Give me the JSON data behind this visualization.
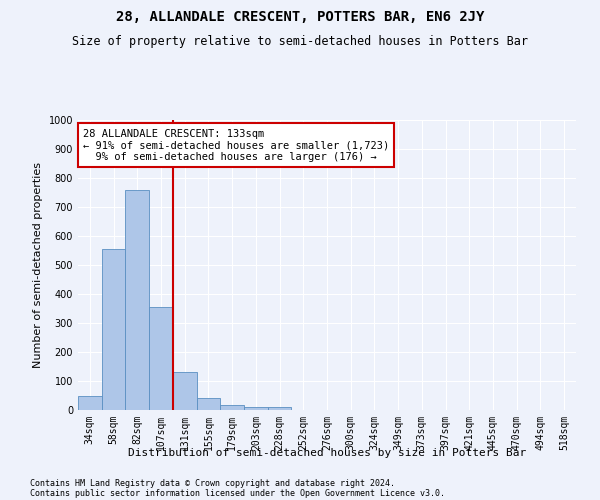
{
  "title": "28, ALLANDALE CRESCENT, POTTERS BAR, EN6 2JY",
  "subtitle": "Size of property relative to semi-detached houses in Potters Bar",
  "xlabel": "Distribution of semi-detached houses by size in Potters Bar",
  "ylabel": "Number of semi-detached properties",
  "footnote1": "Contains HM Land Registry data © Crown copyright and database right 2024.",
  "footnote2": "Contains public sector information licensed under the Open Government Licence v3.0.",
  "bar_labels": [
    "34sqm",
    "58sqm",
    "82sqm",
    "107sqm",
    "131sqm",
    "155sqm",
    "179sqm",
    "203sqm",
    "228sqm",
    "252sqm",
    "276sqm",
    "300sqm",
    "324sqm",
    "349sqm",
    "373sqm",
    "397sqm",
    "421sqm",
    "445sqm",
    "470sqm",
    "494sqm",
    "518sqm"
  ],
  "bar_values": [
    50,
    555,
    760,
    355,
    130,
    40,
    18,
    10,
    10,
    0,
    0,
    0,
    0,
    0,
    0,
    0,
    0,
    0,
    0,
    0,
    0
  ],
  "bar_color": "#aec6e8",
  "bar_edge_color": "#5a8fc2",
  "property_label": "28 ALLANDALE CRESCENT: 133sqm",
  "pct_smaller": 91,
  "n_smaller": 1723,
  "pct_larger": 9,
  "n_larger": 176,
  "vline_bin_index": 4,
  "annotation_box_color": "#ffffff",
  "annotation_box_edge_color": "#cc0000",
  "vline_color": "#cc0000",
  "ylim": [
    0,
    1000
  ],
  "yticks": [
    0,
    100,
    200,
    300,
    400,
    500,
    600,
    700,
    800,
    900,
    1000
  ],
  "background_color": "#eef2fb",
  "grid_color": "#ffffff",
  "title_fontsize": 10,
  "subtitle_fontsize": 8.5,
  "axis_label_fontsize": 8,
  "tick_fontsize": 7,
  "annotation_fontsize": 7.5,
  "footnote_fontsize": 6
}
